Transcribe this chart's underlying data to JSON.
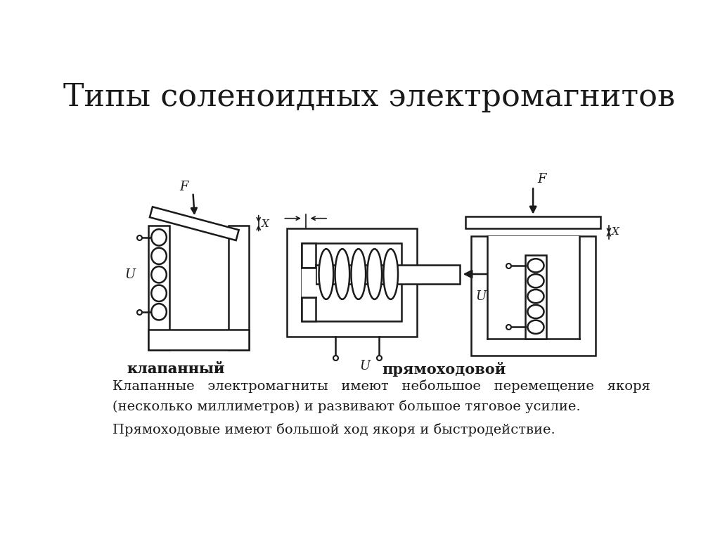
{
  "title": "Типы соленоидных электромагнитов",
  "title_fontsize": 32,
  "label_klapanny": "клапанный",
  "label_pryamokhodovy": "прямоходовой",
  "text_line1": "Клапанные   электромагниты   имеют   небольшое   перемещение   якоря",
  "text_line2": "(несколько миллиметров) и развивают большое тяговое усилие.",
  "text_line3": "Прямоходовые имеют большой ход якоря и быстродействие.",
  "bg_color": "#ffffff",
  "line_color": "#1a1a1a",
  "fontsize_label": 15,
  "fontsize_text": 14
}
